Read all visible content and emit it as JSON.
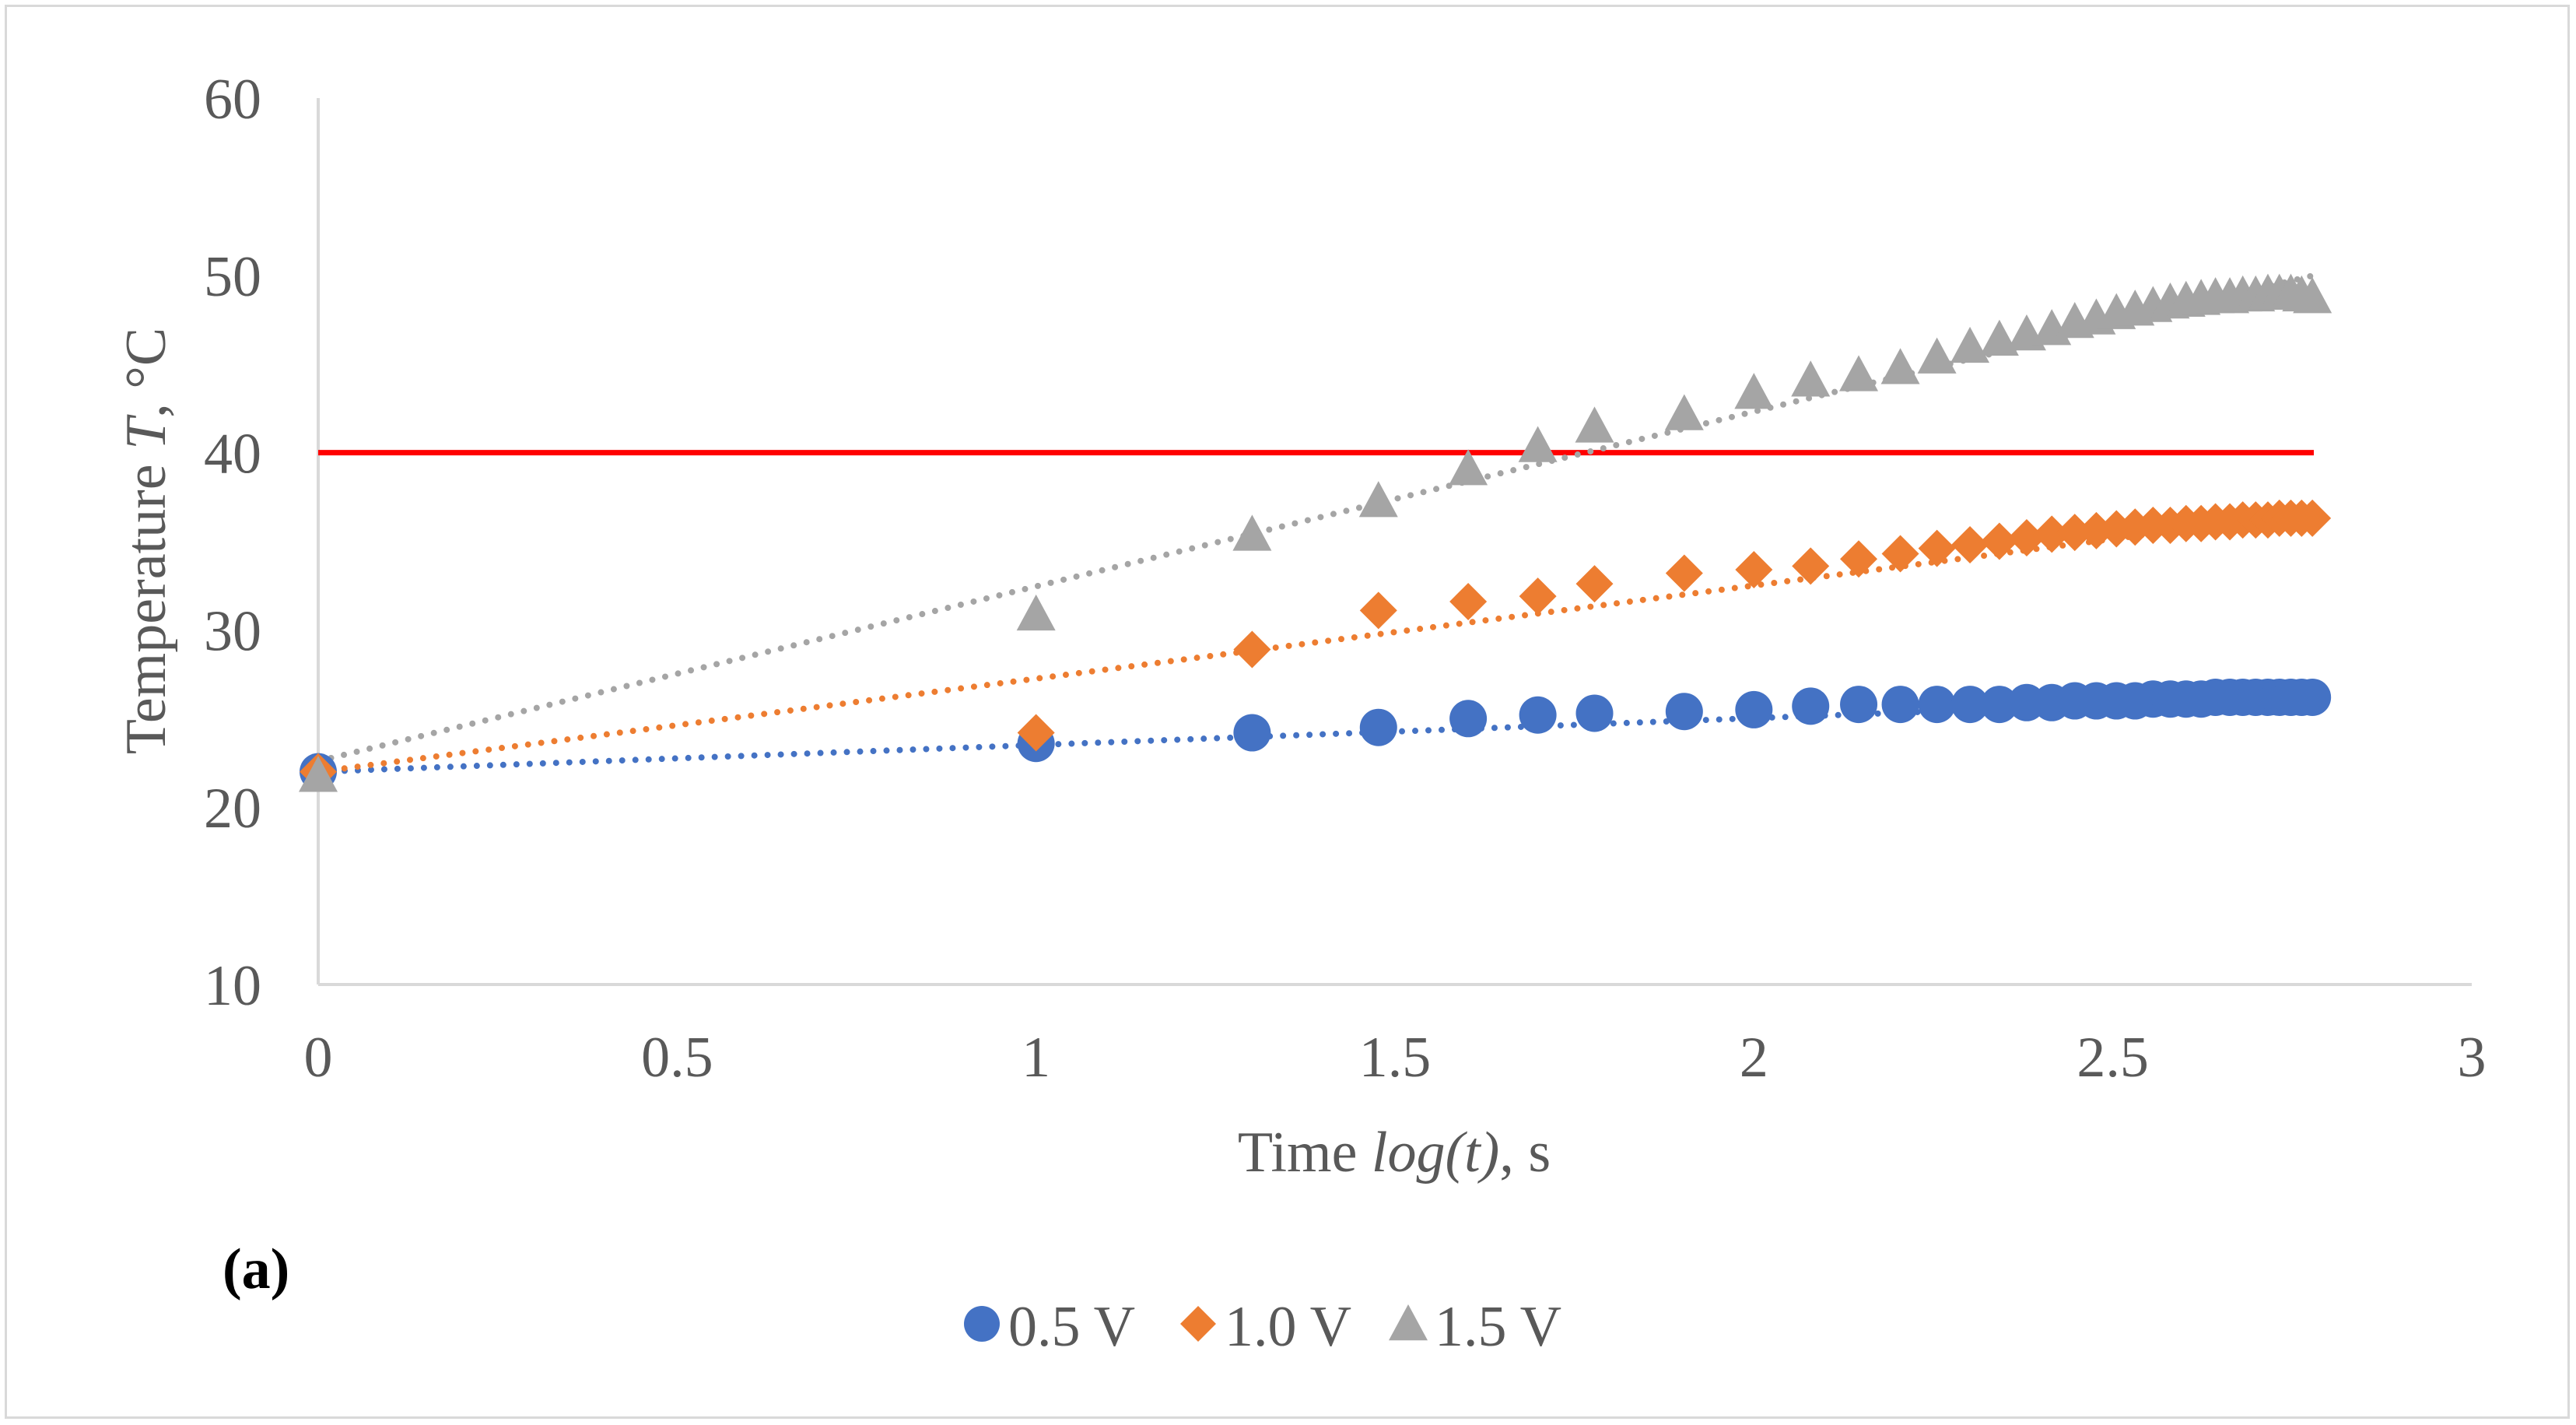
{
  "chart_data": {
    "type": "scatter",
    "panel_label": "(a)",
    "xlabel": {
      "prefix": "Time ",
      "italic": "log(t)",
      "suffix": ", s"
    },
    "ylabel": {
      "prefix": "Temperature ",
      "italic": "T",
      "suffix": ", °C"
    },
    "xlim": [
      0,
      3
    ],
    "ylim": [
      10,
      60
    ],
    "xticks": [
      0,
      0.5,
      1,
      1.5,
      2,
      2.5,
      3
    ],
    "xtick_labels": [
      "0",
      "0.5",
      "1",
      "1.5",
      "2",
      "2.5",
      "3"
    ],
    "yticks": [
      10,
      20,
      30,
      40,
      50,
      60
    ],
    "ytick_labels": [
      "10",
      "20",
      "30",
      "40",
      "50",
      "60"
    ],
    "grid": false,
    "legend_position": "bottom-center",
    "reference_line": {
      "y": 40,
      "x_range": [
        0,
        2.78
      ],
      "color": "#ff0000"
    },
    "series": [
      {
        "name": "0.5 V",
        "marker": "circle",
        "color": "#4472c4",
        "trendline": {
          "type": "log",
          "x_range": [
            0,
            2.78
          ],
          "y_start": 22.0,
          "y_end": 26.2
        },
        "points": [
          [
            0,
            22.0
          ],
          [
            1.0,
            23.6
          ],
          [
            1.301,
            24.2
          ],
          [
            1.477,
            24.5
          ],
          [
            1.602,
            25.0
          ],
          [
            1.699,
            25.2
          ],
          [
            1.778,
            25.3
          ],
          [
            1.903,
            25.4
          ],
          [
            2.0,
            25.5
          ],
          [
            2.079,
            25.7
          ],
          [
            2.146,
            25.8
          ],
          [
            2.204,
            25.8
          ],
          [
            2.255,
            25.8
          ],
          [
            2.301,
            25.8
          ],
          [
            2.342,
            25.8
          ],
          [
            2.38,
            25.9
          ],
          [
            2.415,
            25.9
          ],
          [
            2.447,
            26.0
          ],
          [
            2.477,
            26.0
          ],
          [
            2.505,
            26.0
          ],
          [
            2.531,
            26.0
          ],
          [
            2.556,
            26.1
          ],
          [
            2.58,
            26.1
          ],
          [
            2.602,
            26.1
          ],
          [
            2.623,
            26.1
          ],
          [
            2.643,
            26.2
          ],
          [
            2.663,
            26.2
          ],
          [
            2.681,
            26.2
          ],
          [
            2.699,
            26.2
          ],
          [
            2.716,
            26.2
          ],
          [
            2.732,
            26.2
          ],
          [
            2.748,
            26.2
          ],
          [
            2.763,
            26.2
          ],
          [
            2.778,
            26.2
          ]
        ]
      },
      {
        "name": "1.0 V",
        "marker": "diamond",
        "color": "#ed7d31",
        "trendline": {
          "type": "log",
          "x_range": [
            0,
            2.78
          ],
          "y_start": 22.0,
          "y_end": 36.6
        },
        "points": [
          [
            0,
            22.0
          ],
          [
            1.0,
            24.2
          ],
          [
            1.301,
            28.9
          ],
          [
            1.477,
            31.1
          ],
          [
            1.602,
            31.6
          ],
          [
            1.699,
            31.9
          ],
          [
            1.778,
            32.6
          ],
          [
            1.903,
            33.2
          ],
          [
            2.0,
            33.4
          ],
          [
            2.079,
            33.6
          ],
          [
            2.146,
            34.0
          ],
          [
            2.204,
            34.3
          ],
          [
            2.255,
            34.6
          ],
          [
            2.301,
            34.8
          ],
          [
            2.342,
            35.0
          ],
          [
            2.38,
            35.2
          ],
          [
            2.415,
            35.4
          ],
          [
            2.447,
            35.5
          ],
          [
            2.477,
            35.6
          ],
          [
            2.505,
            35.7
          ],
          [
            2.531,
            35.8
          ],
          [
            2.556,
            35.9
          ],
          [
            2.58,
            35.9
          ],
          [
            2.602,
            36.0
          ],
          [
            2.623,
            36.0
          ],
          [
            2.643,
            36.1
          ],
          [
            2.663,
            36.1
          ],
          [
            2.681,
            36.2
          ],
          [
            2.699,
            36.2
          ],
          [
            2.716,
            36.2
          ],
          [
            2.732,
            36.3
          ],
          [
            2.748,
            36.3
          ],
          [
            2.763,
            36.3
          ],
          [
            2.778,
            36.3
          ]
        ]
      },
      {
        "name": "1.5 V",
        "marker": "triangle",
        "color": "#a5a5a5",
        "trendline": {
          "type": "log",
          "x_range": [
            0,
            2.78
          ],
          "y_start": 22.6,
          "y_end": 50.0
        },
        "points": [
          [
            0,
            21.8
          ],
          [
            1.0,
            30.9
          ],
          [
            1.301,
            35.4
          ],
          [
            1.477,
            37.3
          ],
          [
            1.602,
            39.1
          ],
          [
            1.699,
            40.4
          ],
          [
            1.778,
            41.5
          ],
          [
            1.903,
            42.2
          ],
          [
            2.0,
            43.4
          ],
          [
            2.079,
            44.1
          ],
          [
            2.146,
            44.4
          ],
          [
            2.204,
            44.8
          ],
          [
            2.255,
            45.4
          ],
          [
            2.301,
            46.0
          ],
          [
            2.342,
            46.4
          ],
          [
            2.38,
            46.7
          ],
          [
            2.415,
            47.0
          ],
          [
            2.447,
            47.4
          ],
          [
            2.477,
            47.6
          ],
          [
            2.505,
            47.9
          ],
          [
            2.531,
            48.1
          ],
          [
            2.556,
            48.3
          ],
          [
            2.58,
            48.5
          ],
          [
            2.602,
            48.6
          ],
          [
            2.623,
            48.7
          ],
          [
            2.643,
            48.8
          ],
          [
            2.663,
            48.8
          ],
          [
            2.681,
            48.9
          ],
          [
            2.699,
            48.9
          ],
          [
            2.716,
            49.0
          ],
          [
            2.732,
            49.0
          ],
          [
            2.748,
            49.0
          ],
          [
            2.763,
            48.9
          ],
          [
            2.778,
            48.8
          ]
        ]
      }
    ]
  }
}
